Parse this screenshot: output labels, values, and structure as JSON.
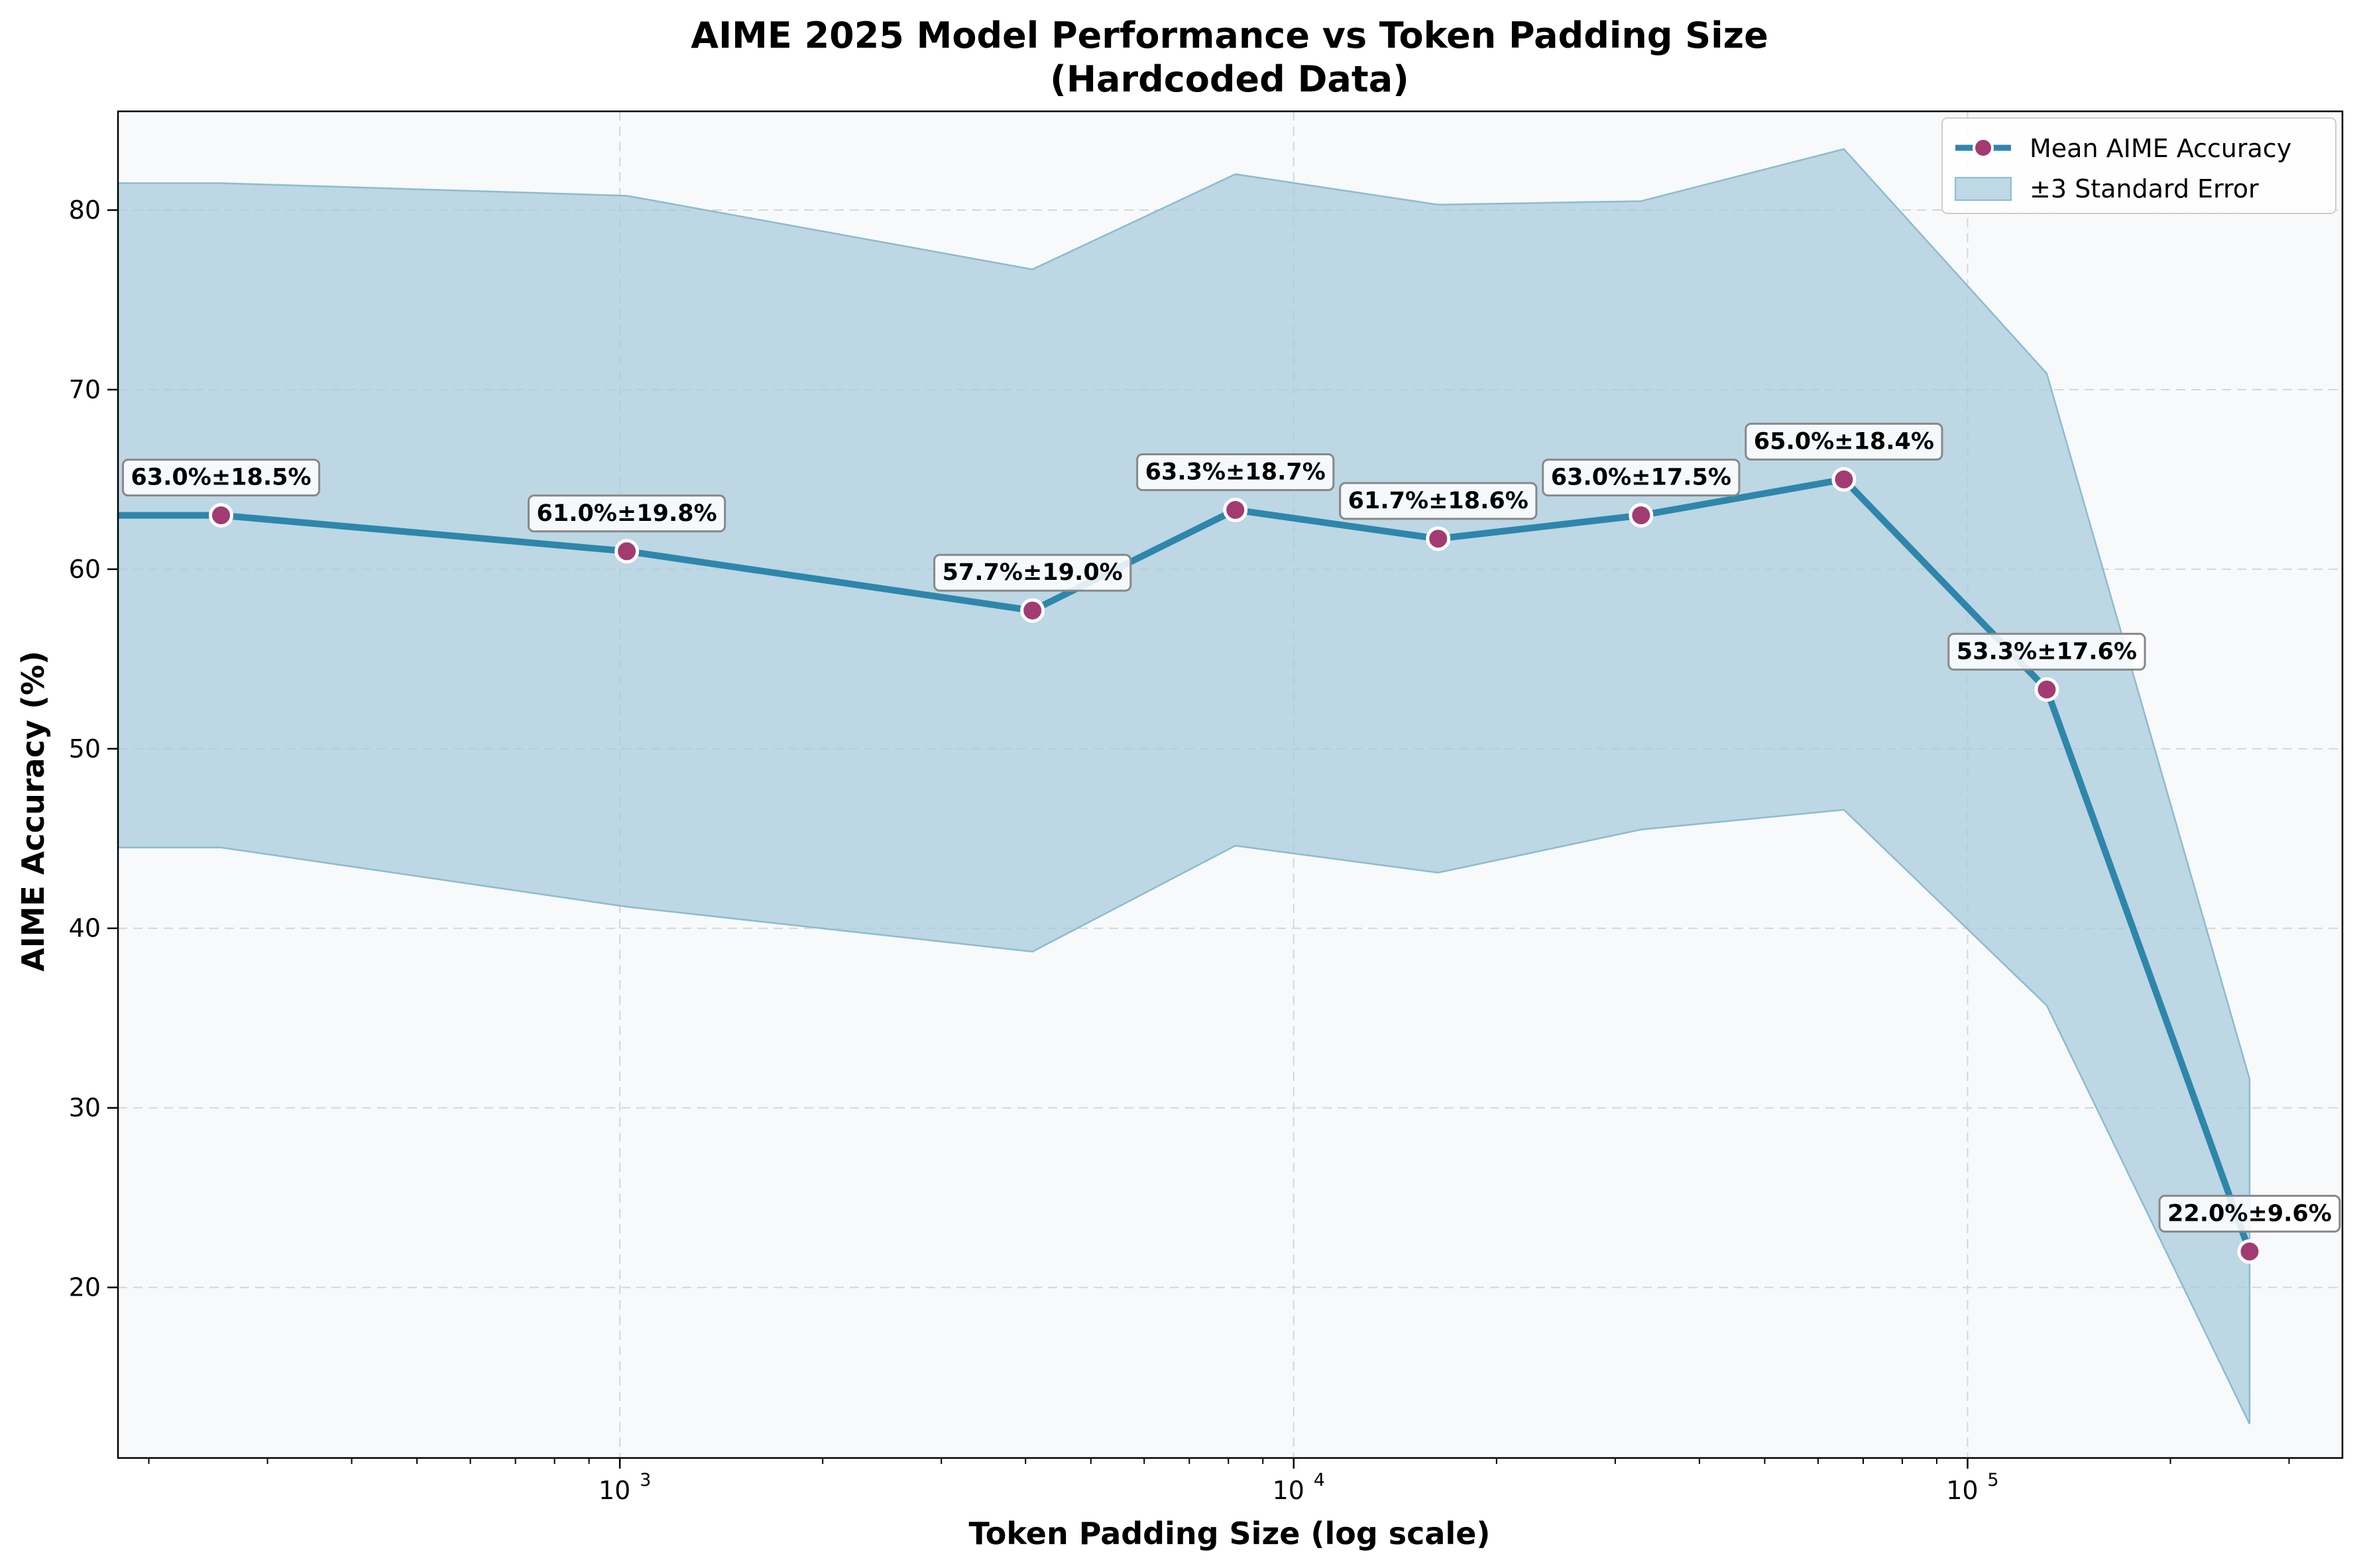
{
  "chart_data": {
    "type": "line",
    "title": "AIME 2025 Model Performance vs Token Padding Size",
    "subtitle": "(Hardcoded Data)",
    "xlabel": "Token Padding Size (log scale)",
    "ylabel": "AIME Accuracy (%)",
    "xscale": "log",
    "xlim": [
      180,
      360000
    ],
    "ylim": [
      10.5,
      85.5
    ],
    "x_ticks": [
      1000,
      10000,
      100000
    ],
    "x_tick_labels": [
      {
        "base": "10",
        "exp": "3"
      },
      {
        "base": "10",
        "exp": "4"
      },
      {
        "base": "10",
        "exp": "5"
      }
    ],
    "y_ticks": [
      20,
      30,
      40,
      50,
      60,
      70,
      80
    ],
    "y_tick_labels": [
      "20",
      "30",
      "40",
      "50",
      "60",
      "70",
      "80"
    ],
    "grid": true,
    "legend_position": "upper right",
    "legend": [
      "Mean AIME Accuracy",
      "±3 Standard Error"
    ],
    "series": [
      {
        "name": "Mean AIME Accuracy",
        "x": [
          0,
          256,
          1024,
          4096,
          8192,
          16384,
          32768,
          65536,
          131072,
          262144
        ],
        "values": [
          63.0,
          63.0,
          61.0,
          57.7,
          63.3,
          61.7,
          63.0,
          65.0,
          53.3,
          22.0
        ],
        "labels": [
          "",
          "63.0%±18.5%",
          "61.0%±19.8%",
          "57.7%±19.0%",
          "63.3%±18.7%",
          "61.7%±18.6%",
          "63.0%±17.5%",
          "65.0%±18.4%",
          "53.3%±17.6%",
          "22.0%±9.6%"
        ],
        "color": "#2e86ab",
        "marker_color": "#a23b72"
      },
      {
        "name": "±3 Standard Error",
        "x": [
          0,
          256,
          1024,
          4096,
          8192,
          16384,
          32768,
          65536,
          131072,
          262144
        ],
        "upper": [
          81.5,
          81.5,
          80.8,
          76.7,
          82.0,
          80.3,
          80.5,
          83.4,
          70.9,
          31.6
        ],
        "lower": [
          44.5,
          44.5,
          41.2,
          38.7,
          44.6,
          43.1,
          45.5,
          46.6,
          35.7,
          12.4
        ],
        "color": "#aacbdc"
      }
    ]
  }
}
